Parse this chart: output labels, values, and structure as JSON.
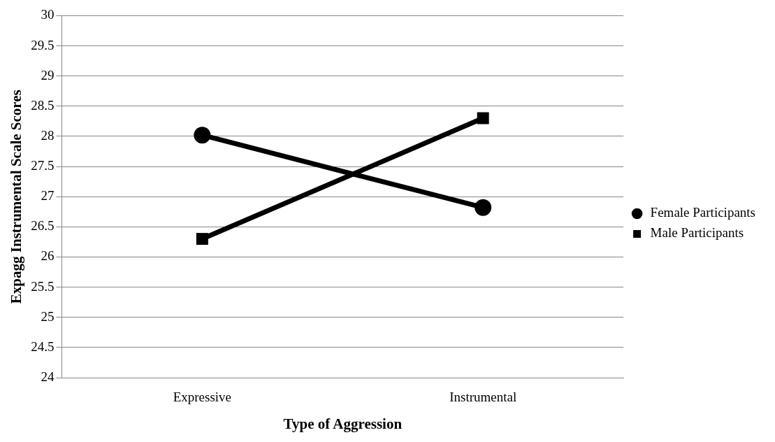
{
  "chart_data": {
    "type": "line",
    "xlabel": "Type of Aggression",
    "ylabel": "Expagg Instrumental Scale Scores",
    "categories": [
      "Expressive",
      "Instrumental"
    ],
    "series": [
      {
        "name": "Female Participants",
        "color": "#000000",
        "marker": "circle",
        "values": [
          28.02,
          26.82
        ]
      },
      {
        "name": "Male Participants",
        "color": "#000000",
        "marker": "square",
        "values": [
          26.3,
          28.3
        ]
      }
    ],
    "ylim": [
      24,
      30
    ],
    "yticks": [
      24,
      24.5,
      25,
      25.5,
      26,
      26.5,
      27,
      27.5,
      28,
      28.5,
      29,
      29.5,
      30
    ],
    "grid": "y",
    "legend": "right",
    "line_style": "solid"
  }
}
